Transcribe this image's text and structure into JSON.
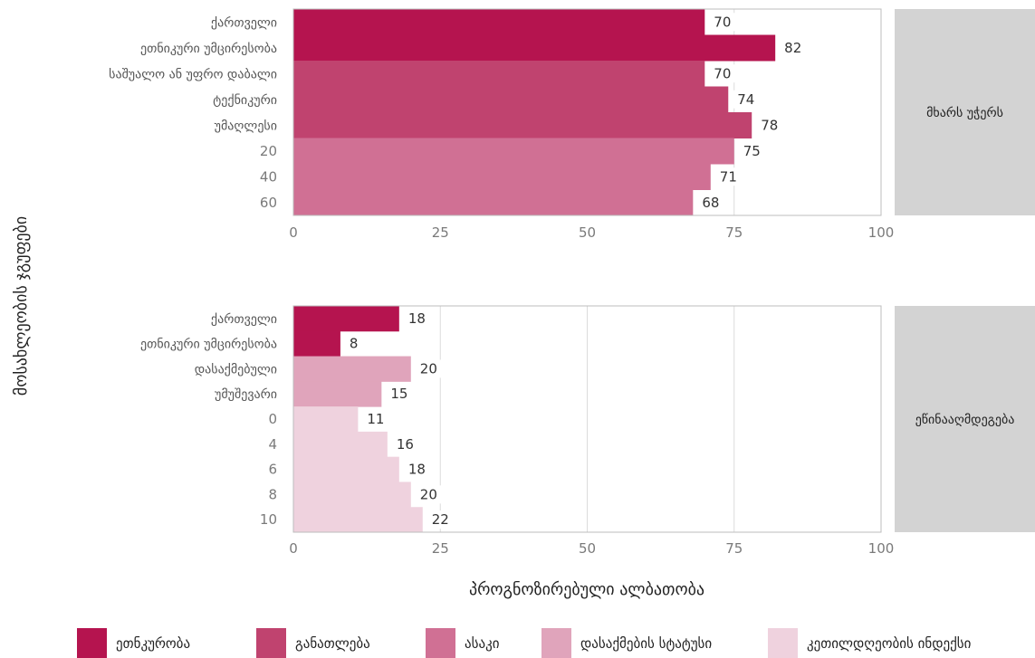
{
  "chart_data": {
    "type": "bar",
    "orientation": "horizontal",
    "xlabel": "პროგნოზირებული ალბათობა",
    "ylabel": "მოსახლეობის ჯგუფები",
    "xlim": [
      0,
      100
    ],
    "xticks": [
      0,
      25,
      50,
      75,
      100
    ],
    "grid": true,
    "legend_position": "bottom",
    "legend": [
      {
        "name": "ეთნკურობა",
        "color": "#b5144f"
      },
      {
        "name": "განათლება",
        "color": "#c0436f"
      },
      {
        "name": "ასაკი",
        "color": "#d07094"
      },
      {
        "name": "დასაქმების სტატუსი",
        "color": "#e0a4bb"
      },
      {
        "name": "კეთილდღეობის ინდექსი",
        "color": "#efd2de"
      }
    ],
    "panels": [
      {
        "strip_label": "მხარს უჭერს",
        "bars": [
          {
            "category": "ქართველი",
            "value": 70,
            "group": 0
          },
          {
            "category": "ეთნიკური უმცირესობა",
            "value": 82,
            "group": 0
          },
          {
            "category": "საშუალო ან უფრო დაბალი",
            "value": 70,
            "group": 1
          },
          {
            "category": "ტექნიკური",
            "value": 74,
            "group": 1
          },
          {
            "category": "უმაღლესი",
            "value": 78,
            "group": 1
          },
          {
            "category": "20",
            "value": 75,
            "group": 2
          },
          {
            "category": "40",
            "value": 71,
            "group": 2
          },
          {
            "category": "60",
            "value": 68,
            "group": 2
          }
        ]
      },
      {
        "strip_label": "ეწინააღმდეგება",
        "bars": [
          {
            "category": "ქართველი",
            "value": 18,
            "group": 0
          },
          {
            "category": "ეთნიკური უმცირესობა",
            "value": 8,
            "group": 0
          },
          {
            "category": "დასაქმებული",
            "value": 20,
            "group": 3
          },
          {
            "category": "უმუშევარი",
            "value": 15,
            "group": 3
          },
          {
            "category": "0",
            "value": 11,
            "group": 4
          },
          {
            "category": "4",
            "value": 16,
            "group": 4
          },
          {
            "category": "6",
            "value": 18,
            "group": 4
          },
          {
            "category": "8",
            "value": 20,
            "group": 4
          },
          {
            "category": "10",
            "value": 22,
            "group": 4
          }
        ]
      }
    ]
  }
}
